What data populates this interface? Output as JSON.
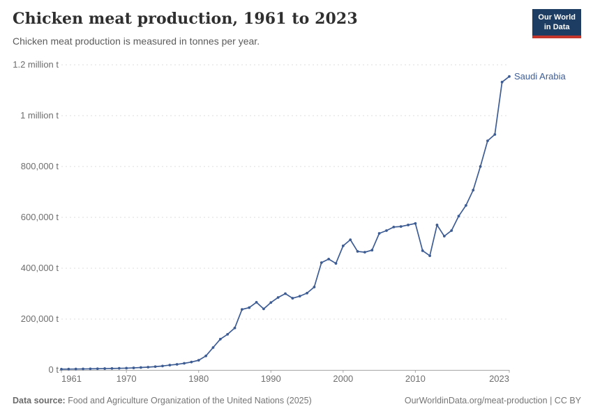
{
  "header": {
    "title": "Chicken meat production, 1961 to 2023",
    "subtitle": "Chicken meat production is measured in tonnes per year.",
    "logo_line1": "Our World",
    "logo_line2": "in Data"
  },
  "footer": {
    "data_source_label": "Data source:",
    "data_source_text": "Food and Agriculture Organization of the United Nations (2025)",
    "url": "OurWorldinData.org/meat-production",
    "separator": " | ",
    "license": "CC BY"
  },
  "colors": {
    "line": "#3d5c94",
    "series_label": "#3d5c94",
    "logo_background": "#1d3d63",
    "logo_stripe": "#c4352b",
    "gridline": "#dcdcdc",
    "axis": "#a5a5a5",
    "tick_text": "#6e6e6e"
  },
  "chart_data": {
    "type": "line",
    "title": "Chicken meat production, 1961 to 2023",
    "subtitle": "Chicken meat production is measured in tonnes per year.",
    "xlabel": "",
    "ylabel": "tonnes per year",
    "ylim": [
      0,
      1200000
    ],
    "grid": "dashed-horizontal",
    "legend_position": "end-of-line-label",
    "x": [
      1961,
      1962,
      1963,
      1964,
      1965,
      1966,
      1967,
      1968,
      1969,
      1970,
      1971,
      1972,
      1973,
      1974,
      1975,
      1976,
      1977,
      1978,
      1979,
      1980,
      1981,
      1982,
      1983,
      1984,
      1985,
      1986,
      1987,
      1988,
      1989,
      1990,
      1991,
      1992,
      1993,
      1994,
      1995,
      1996,
      1997,
      1998,
      1999,
      2000,
      2001,
      2002,
      2003,
      2004,
      2005,
      2006,
      2007,
      2008,
      2009,
      2010,
      2011,
      2012,
      2013,
      2014,
      2015,
      2016,
      2017,
      2018,
      2019,
      2020,
      2021,
      2022,
      2023
    ],
    "series": [
      {
        "name": "Saudi Arabia",
        "color": "#3d5c94",
        "values": [
          3000,
          3300,
          3600,
          4000,
          4400,
          4800,
          5300,
          5800,
          6400,
          7000,
          8000,
          9500,
          11000,
          13000,
          15500,
          19000,
          22000,
          26000,
          31000,
          38000,
          55000,
          88000,
          121000,
          140000,
          165000,
          238000,
          245000,
          266000,
          240000,
          265000,
          285000,
          300000,
          282000,
          290000,
          302000,
          326000,
          422000,
          436000,
          419000,
          488000,
          512000,
          466000,
          463000,
          471000,
          537000,
          548000,
          562000,
          564000,
          570000,
          576000,
          469000,
          449000,
          570000,
          526000,
          548000,
          605000,
          647000,
          707000,
          800000,
          901000,
          926000,
          1132000,
          1154000
        ]
      }
    ],
    "yticks": [
      {
        "value": 0,
        "label": "0 t"
      },
      {
        "value": 200000,
        "label": "200,000 t"
      },
      {
        "value": 400000,
        "label": "400,000 t"
      },
      {
        "value": 600000,
        "label": "600,000 t"
      },
      {
        "value": 800000,
        "label": "800,000 t"
      },
      {
        "value": 1000000,
        "label": "1 million t"
      },
      {
        "value": 1200000,
        "label": "1.2 million t"
      }
    ],
    "xticks": [
      1961,
      1970,
      1980,
      1990,
      2000,
      2010,
      2023
    ]
  }
}
